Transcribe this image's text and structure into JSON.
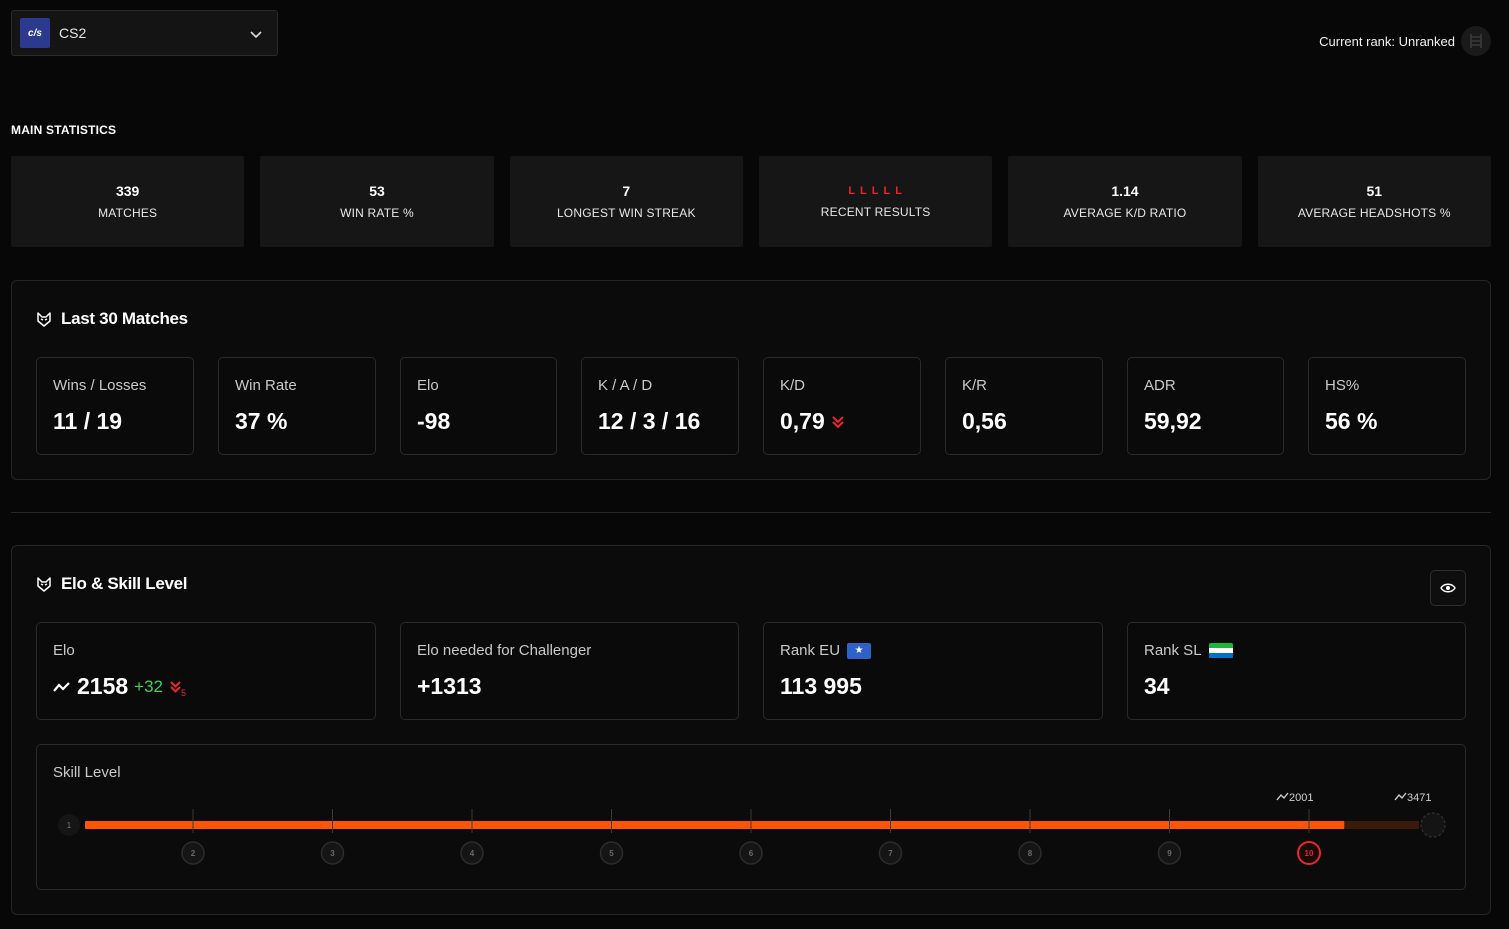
{
  "header": {
    "game_logo_text": "c/s",
    "game_name": "CS2",
    "rank_text": "Current rank: Unranked"
  },
  "main_statistics": {
    "heading": "MAIN STATISTICS",
    "cards": [
      {
        "value": "339",
        "label": "MATCHES"
      },
      {
        "value": "53",
        "label": "WIN RATE %"
      },
      {
        "value": "7",
        "label": "LONGEST WIN STREAK"
      },
      {
        "value": "",
        "label": "RECENT RESULTS"
      },
      {
        "value": "1.14",
        "label": "AVERAGE K/D RATIO"
      },
      {
        "value": "51",
        "label": "AVERAGE HEADSHOTS %"
      }
    ],
    "recent_results": [
      "L",
      "L",
      "L",
      "L",
      "L"
    ]
  },
  "last30": {
    "title": "Last 30 Matches",
    "metrics": [
      {
        "label": "Wins / Losses",
        "value": "11 / 19"
      },
      {
        "label": "Win Rate",
        "value": "37 %"
      },
      {
        "label": "Elo",
        "value": "-98"
      },
      {
        "label": "K / A / D",
        "value": "12 / 3 / 16"
      },
      {
        "label": "K/D",
        "value": "0,79"
      },
      {
        "label": "K/R",
        "value": "0,56"
      },
      {
        "label": "ADR",
        "value": "59,92"
      },
      {
        "label": "HS%",
        "value": "56 %"
      }
    ]
  },
  "elo_skill": {
    "title": "Elo & Skill Level",
    "cards": [
      {
        "label": "Elo",
        "value": "2158",
        "delta": "+32",
        "streak": "5"
      },
      {
        "label": "Elo needed for Challenger",
        "value": "+1313"
      },
      {
        "label": "Rank EU",
        "value": "113 995"
      },
      {
        "label": "Rank SL",
        "value": "34"
      }
    ],
    "skill": {
      "label": "Skill Level",
      "current_level": 10,
      "progress_fraction": 0.944,
      "levels": [
        "1",
        "2",
        "3",
        "4",
        "5",
        "6",
        "7",
        "8",
        "9",
        "10"
      ],
      "level10_elo": "2001",
      "challenger_elo": "3471"
    }
  },
  "colors": {
    "accent": "#ff5500",
    "loss": "#e8262d",
    "gain": "#3ecf5b"
  }
}
